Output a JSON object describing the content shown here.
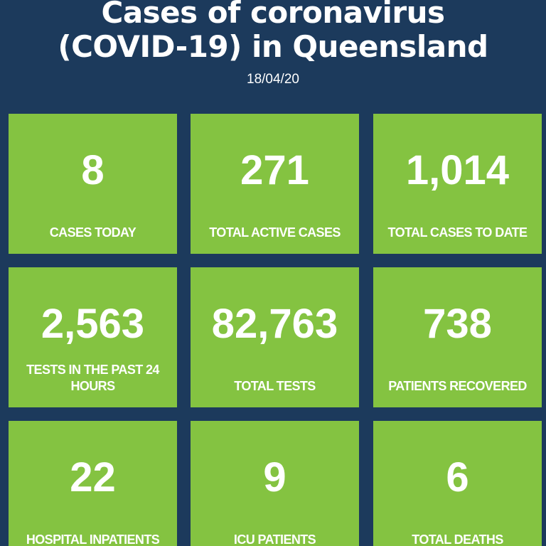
{
  "header": {
    "title_lines": [
      "Cases of coronavirus",
      "(COVID-19) in Queensland"
    ],
    "date": "18/04/20"
  },
  "tiles": [
    {
      "value": "8",
      "label": "CASES TODAY"
    },
    {
      "value": "271",
      "label": "TOTAL ACTIVE CASES"
    },
    {
      "value": "1,014",
      "label": "TOTAL CASES TO DATE"
    },
    {
      "value": "2,563",
      "label": "TESTS IN THE PAST 24 HOURS"
    },
    {
      "value": "82,763",
      "label": "TOTAL TESTS"
    },
    {
      "value": "738",
      "label": "PATIENTS RECOVERED"
    },
    {
      "value": "22",
      "label": "HOSPITAL INPATIENTS"
    },
    {
      "value": "9",
      "label": "ICU PATIENTS"
    },
    {
      "value": "6",
      "label": "TOTAL DEATHS"
    }
  ]
}
